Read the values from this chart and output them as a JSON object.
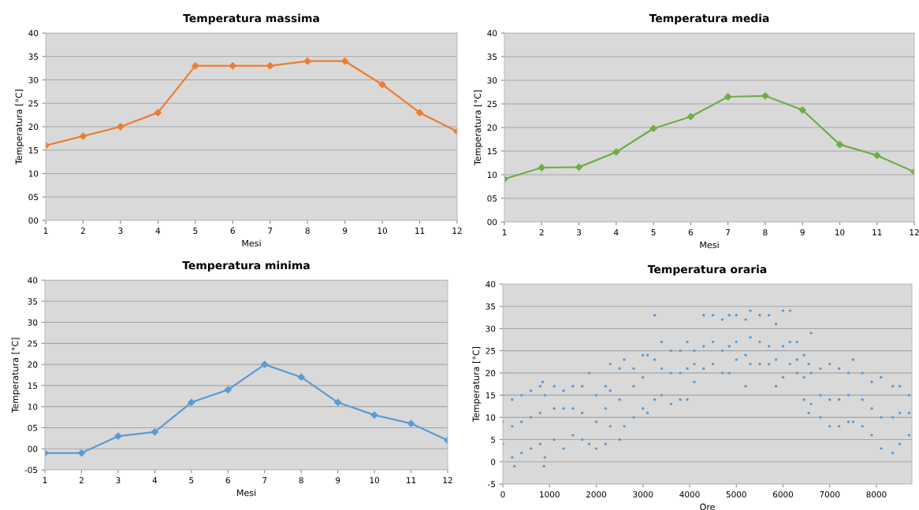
{
  "chart_data": [
    {
      "type": "line",
      "title": "Temperatura massima",
      "xlabel": "Mesi",
      "ylabel": "Temperatura [°C]",
      "x": [
        1,
        2,
        3,
        4,
        5,
        6,
        7,
        8,
        9,
        10,
        11,
        12
      ],
      "series": [
        {
          "color": "#ed7d31",
          "values": [
            16,
            18,
            20,
            23,
            33,
            33,
            33,
            34,
            34,
            29,
            23,
            19
          ]
        }
      ],
      "xlim": [
        1,
        12
      ],
      "xticks": [
        1,
        2,
        3,
        4,
        5,
        6,
        7,
        8,
        9,
        10,
        11,
        12
      ],
      "ylim": [
        0,
        40
      ],
      "yticks": [
        {
          "value": 0,
          "label": "00"
        },
        {
          "value": 5,
          "label": "05"
        },
        10,
        15,
        20,
        25,
        30,
        35,
        40
      ],
      "grid": "y",
      "marker": "diamond",
      "legend": false
    },
    {
      "type": "line",
      "title": "Temperatura media",
      "xlabel": "Mesi",
      "ylabel": "Temperatura [°C]",
      "x": [
        1,
        2,
        3,
        4,
        5,
        6,
        7,
        8,
        9,
        10,
        11,
        12
      ],
      "series": [
        {
          "color": "#70ad47",
          "values": [
            9.1,
            11.5,
            11.6,
            14.8,
            19.8,
            22.3,
            26.5,
            26.7,
            23.7,
            16.4,
            14.1,
            10.6
          ]
        }
      ],
      "xlim": [
        1,
        12
      ],
      "xticks": [
        1,
        2,
        3,
        4,
        5,
        6,
        7,
        8,
        9,
        10,
        11,
        12
      ],
      "ylim": [
        0,
        40
      ],
      "yticks": [
        {
          "value": 0,
          "label": "00"
        },
        {
          "value": 5,
          "label": "05"
        },
        10,
        15,
        20,
        25,
        30,
        35,
        40
      ],
      "grid": "y",
      "marker": "diamond",
      "legend": false
    },
    {
      "type": "line",
      "title": "Temperatura minima",
      "xlabel": "Mesi",
      "ylabel": "Temperatura [°C]",
      "x": [
        1,
        2,
        3,
        4,
        5,
        6,
        7,
        8,
        9,
        10,
        11,
        12
      ],
      "series": [
        {
          "color": "#5b9bd5",
          "values": [
            -1,
            -1,
            3,
            4,
            11,
            14,
            20,
            17,
            11,
            8,
            6,
            2
          ]
        }
      ],
      "xlim": [
        1,
        12
      ],
      "xticks": [
        1,
        2,
        3,
        4,
        5,
        6,
        7,
        8,
        9,
        10,
        11,
        12
      ],
      "ylim": [
        -5,
        40
      ],
      "yticks": [
        {
          "value": -5,
          "label": "-05"
        },
        {
          "value": 0,
          "label": "00"
        },
        {
          "value": 5,
          "label": "05"
        },
        10,
        15,
        20,
        25,
        30,
        35,
        40
      ],
      "grid": "y",
      "marker": "diamond",
      "legend": false
    },
    {
      "type": "scatter",
      "title": "Temperatura oraria",
      "xlabel": "Ore",
      "ylabel": "Temperatura [°C]",
      "series": [
        {
          "color": "#5b9bd5",
          "x": [
            0,
            0,
            0,
            200,
            200,
            200,
            250,
            400,
            400,
            400,
            600,
            600,
            600,
            800,
            800,
            800,
            850,
            900,
            900,
            880,
            1100,
            1100,
            1100,
            1300,
            1300,
            1300,
            1500,
            1500,
            1500,
            1700,
            1700,
            1700,
            1850,
            1850,
            2000,
            2000,
            2000,
            2200,
            2200,
            2200,
            2300,
            2300,
            2300,
            2500,
            2500,
            2500,
            2600,
            2600,
            2800,
            2800,
            2800,
            3000,
            3000,
            3000,
            3100,
            3100,
            3250,
            3250,
            3250,
            3400,
            3400,
            3400,
            3600,
            3600,
            3600,
            3800,
            3800,
            3800,
            3950,
            3950,
            3950,
            4100,
            4100,
            4100,
            4300,
            4300,
            4300,
            4500,
            4500,
            4500,
            4700,
            4700,
            4700,
            4850,
            4850,
            4850,
            5000,
            5000,
            5000,
            5200,
            5200,
            5200,
            5300,
            5300,
            5300,
            5500,
            5500,
            5500,
            5700,
            5700,
            5700,
            5850,
            5850,
            5850,
            6000,
            6000,
            6000,
            6150,
            6150,
            6150,
            6300,
            6300,
            6300,
            6450,
            6450,
            6450,
            6550,
            6550,
            6600,
            6600,
            6600,
            6800,
            6800,
            6800,
            7000,
            7000,
            7000,
            7200,
            7200,
            7200,
            7400,
            7400,
            7400,
            7500,
            7500,
            7700,
            7700,
            7700,
            7900,
            7900,
            7900,
            8100,
            8100,
            8100,
            8350,
            8350,
            8350,
            8500,
            8500,
            8500,
            8700,
            8700,
            8700
          ],
          "values": [
            4,
            15,
            9,
            1,
            14,
            8,
            -1,
            2,
            15,
            9,
            3,
            16,
            10,
            4,
            17,
            11,
            18,
            1,
            15,
            -1,
            5,
            17,
            12,
            3,
            16,
            12,
            6,
            17,
            12,
            5,
            17,
            11,
            20,
            4,
            3,
            15,
            9,
            4,
            17,
            12,
            22,
            8,
            16,
            5,
            21,
            14,
            23,
            8,
            21,
            10,
            17,
            24,
            12,
            19,
            11,
            24,
            33,
            14,
            23,
            27,
            15,
            21,
            25,
            13,
            20,
            25,
            14,
            20,
            27,
            14,
            21,
            25,
            18,
            22,
            33,
            21,
            26,
            33,
            22,
            27,
            32,
            20,
            25,
            33,
            20,
            26,
            33,
            23,
            27,
            32,
            17,
            24,
            34,
            22,
            28,
            33,
            22,
            27,
            33,
            22,
            26,
            31,
            17,
            23,
            34,
            19,
            26,
            34,
            22,
            27,
            27,
            20,
            23,
            24,
            14,
            19,
            11,
            22,
            29,
            13,
            20,
            21,
            10,
            15,
            22,
            8,
            14,
            21,
            8,
            14,
            20,
            9,
            15,
            23,
            9,
            20,
            8,
            14,
            18,
            6,
            12,
            19,
            3,
            10,
            17,
            2,
            10,
            17,
            4,
            11,
            15,
            6,
            11
          ]
        }
      ],
      "xlim": [
        0,
        8760
      ],
      "xticks": [
        0,
        1000,
        2000,
        3000,
        4000,
        5000,
        6000,
        7000,
        8000
      ],
      "ylim": [
        -5,
        40
      ],
      "yticks": [
        -5,
        0,
        5,
        10,
        15,
        20,
        25,
        30,
        35,
        40
      ],
      "grid": "y",
      "marker": "circle",
      "legend": false
    }
  ]
}
